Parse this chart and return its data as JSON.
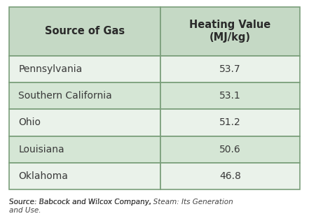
{
  "col1_header": "Source of Gas",
  "col2_header": "Heating Value\n(MJ/kg)",
  "rows": [
    [
      "Pennsylvania",
      "53.7"
    ],
    [
      "Southern California",
      "53.1"
    ],
    [
      "Ohio",
      "51.2"
    ],
    [
      "Louisiana",
      "50.6"
    ],
    [
      "Oklahoma",
      "46.8"
    ]
  ],
  "header_bg": "#c5d9c5",
  "row_bg_odd": "#eaf2ea",
  "row_bg_even": "#d5e6d5",
  "border_color": "#7a9e7a",
  "text_color": "#3a3a3a",
  "header_text_color": "#2a2a2a",
  "source_text": "Source: Babcock and Wilcox Company, Steam: Its Generation\nand Use.",
  "fig_bg": "#ffffff"
}
